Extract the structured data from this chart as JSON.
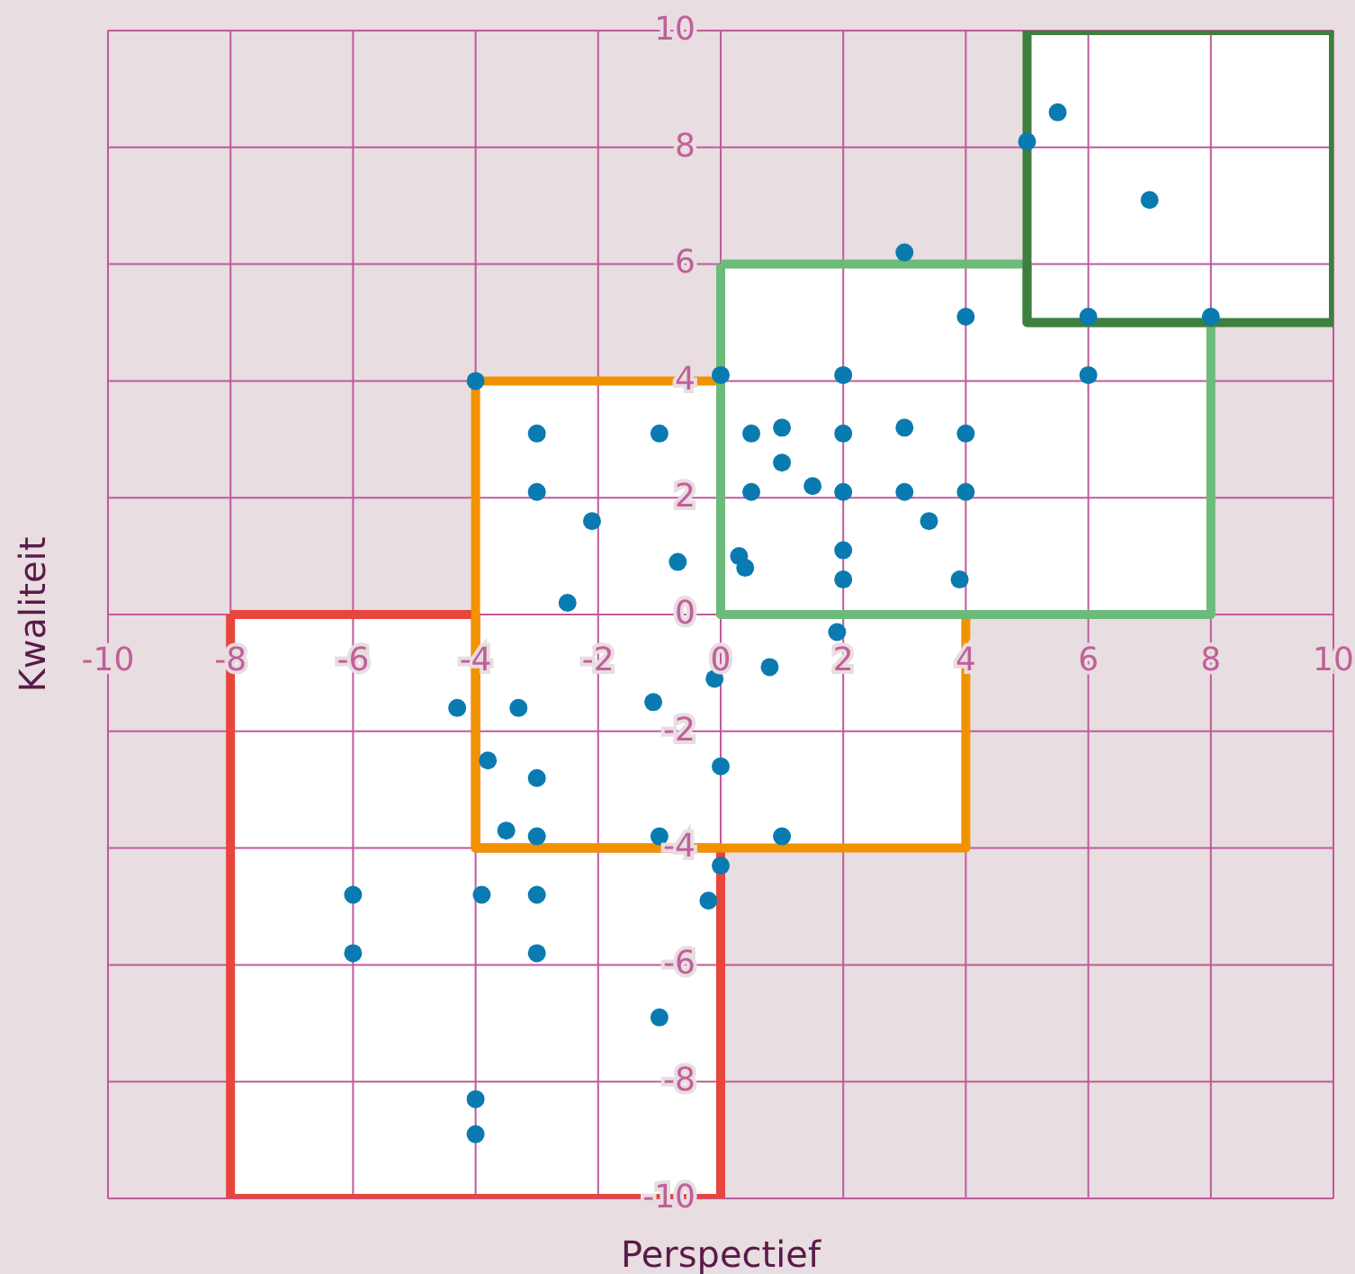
{
  "chart_data": {
    "type": "scatter",
    "xlabel": "Perspectief",
    "ylabel": "Kwaliteit",
    "xlim": [
      -10,
      10
    ],
    "ylim": [
      -10,
      10
    ],
    "xticks": [
      -10,
      -8,
      -6,
      -4,
      -2,
      0,
      2,
      4,
      6,
      8,
      10
    ],
    "yticks": [
      -10,
      -8,
      -6,
      -4,
      -2,
      0,
      2,
      4,
      6,
      8,
      10
    ],
    "grid": true,
    "line_style": "solid",
    "series": [
      {
        "type": "area",
        "color": "#e8453c",
        "x": [
          -8,
          -4,
          -4,
          0,
          0,
          -8,
          -8
        ],
        "values": [
          0,
          0,
          -4,
          -4,
          -10,
          -10,
          0
        ]
      },
      {
        "type": "area",
        "color": "#f39200",
        "x": [
          -4,
          0,
          0,
          4,
          4,
          -4,
          -4
        ],
        "values": [
          4,
          4,
          0,
          0,
          -4,
          -4,
          4
        ]
      },
      {
        "type": "area",
        "color": "#6dbb7a",
        "x": [
          0,
          5,
          5,
          8,
          8,
          0,
          0
        ],
        "values": [
          6,
          6,
          5,
          5,
          0,
          0,
          6
        ]
      },
      {
        "type": "area",
        "color": "#3d7f3e",
        "x": [
          5,
          10,
          10,
          5,
          5
        ],
        "values": [
          10,
          10,
          5,
          5,
          10
        ]
      },
      {
        "color": "#0a7bb0",
        "marker": "circle",
        "x": [
          -4,
          -3,
          -1,
          -3,
          -2.1,
          -0.7,
          -2.5,
          0,
          0.5,
          1,
          1,
          0.5,
          1.5,
          2,
          2,
          2,
          2,
          2,
          0.3,
          0.4,
          3,
          3,
          3,
          3.4,
          4,
          4,
          4,
          3.9,
          1.9,
          5,
          5.5,
          7,
          6,
          8,
          6,
          -4.3,
          -3.3,
          -1.1,
          -0.1,
          0.8,
          -3.8,
          -3,
          0,
          -3.5,
          -3,
          -1,
          1,
          0,
          -6,
          -3.9,
          -3,
          -0.2,
          -6,
          -3,
          -1,
          -4,
          -4
        ],
        "values": [
          4,
          3.1,
          3.1,
          2.1,
          1.6,
          0.9,
          0.2,
          4.1,
          3.1,
          3.2,
          2.6,
          2.1,
          2.2,
          4.1,
          3.1,
          2.1,
          1.1,
          0.6,
          1,
          0.8,
          6.2,
          3.2,
          2.1,
          1.6,
          5.1,
          3.1,
          2.1,
          0.6,
          -0.3,
          8.1,
          8.6,
          7.1,
          5.1,
          5.1,
          4.1,
          -1.6,
          -1.6,
          -1.5,
          -1.1,
          -0.9,
          -2.5,
          -2.8,
          -2.6,
          -3.7,
          -3.8,
          -3.8,
          -3.8,
          -4.3,
          -4.8,
          -4.8,
          -4.8,
          -4.9,
          -5.8,
          -5.8,
          -6.9,
          -8.3,
          -8.9
        ]
      }
    ]
  }
}
